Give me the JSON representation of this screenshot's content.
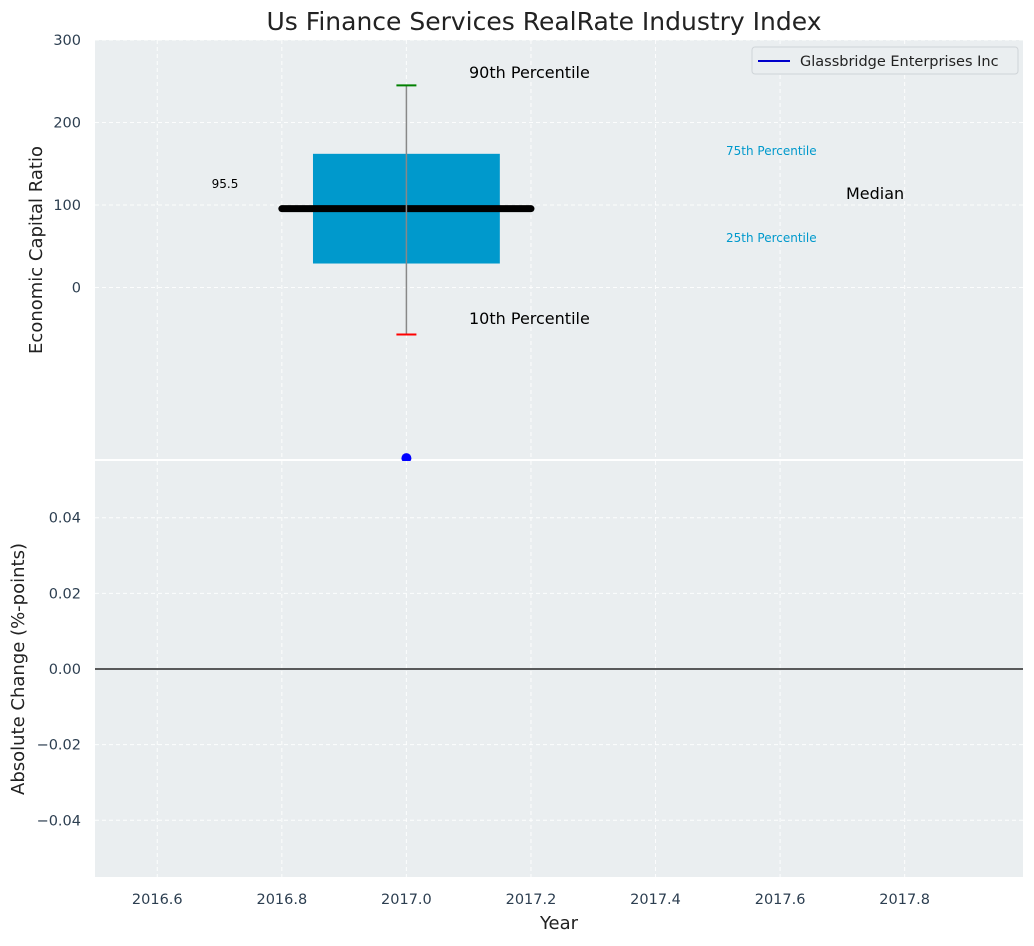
{
  "chart_data": [
    {
      "type": "box",
      "title": "Us Finance Services RealRate Industry Index",
      "xlabel": "",
      "ylabel": "Economic Capital Ratio",
      "xlim": [
        2016.5,
        2017.99
      ],
      "ylim": [
        -208,
        300
      ],
      "yticks": [
        0,
        100,
        200,
        300
      ],
      "grid": true,
      "legend": {
        "position": "top-right",
        "entries": [
          {
            "label": "Glassbridge Enterprises Inc",
            "color": "#0000cc"
          }
        ]
      },
      "box": {
        "x": 2017.0,
        "q1": 29,
        "q3": 162,
        "median": 95.5,
        "p10": -57,
        "p90": 245,
        "half_width": 0.15
      },
      "median_line": {
        "x0": 2016.8,
        "x1": 2017.2,
        "value": 95.5
      },
      "company_point": {
        "name": "Glassbridge Enterprises Inc",
        "x": 2017.0,
        "y": -207
      },
      "annotations": {
        "median_value": "95.5",
        "p90": "90th Percentile",
        "p10": "10th Percentile",
        "p75": "75th Percentile",
        "p25": "25th Percentile",
        "median": "Median"
      },
      "colors": {
        "box": "#0099cc",
        "median": "#000000",
        "p90_cap": "#008000",
        "p10_cap": "#ff0000",
        "point": "#0000ff",
        "percentile_label": "#0099cc"
      }
    },
    {
      "type": "line",
      "title": "",
      "xlabel": "Year",
      "ylabel": "Absolute Change (%-points)",
      "xlim": [
        2016.5,
        2017.99
      ],
      "ylim": [
        -0.055,
        0.055
      ],
      "xticks": [
        "2016.6",
        "2016.8",
        "2017.0",
        "2017.2",
        "2017.4",
        "2017.6",
        "2017.8"
      ],
      "yticks": [
        "0.04",
        "0.02",
        "0.00",
        "−0.02",
        "−0.04"
      ],
      "grid": true,
      "series": [
        {
          "name": "zero-line",
          "x": [
            2016.5,
            2017.99
          ],
          "values": [
            0,
            0
          ]
        }
      ]
    }
  ]
}
